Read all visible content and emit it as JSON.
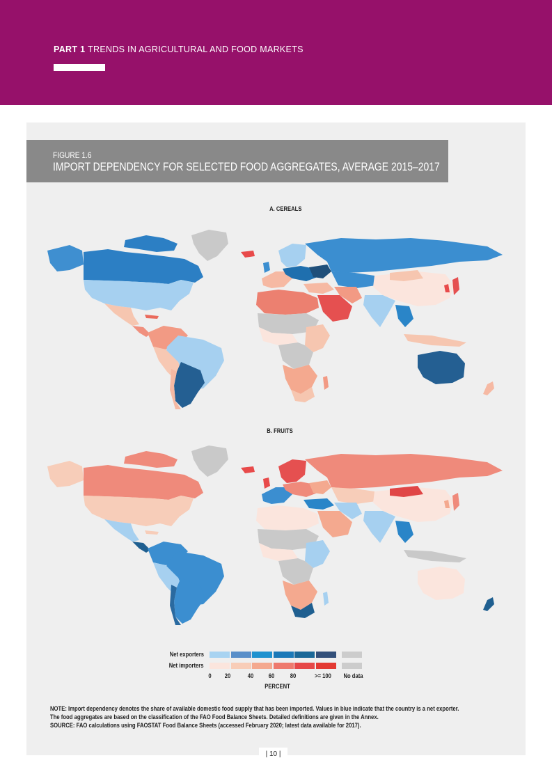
{
  "header": {
    "part_label": "PART 1",
    "part_title": "TRENDS IN AGRICULTURAL AND FOOD MARKETS",
    "accent_color": "#96116a"
  },
  "figure": {
    "label": "FIGURE 1.6",
    "title": "IMPORT DEPENDENCY FOR SELECTED FOOD AGGREGATES, AVERAGE 2015–2017"
  },
  "maps": {
    "cereals_title": "A. CEREALS",
    "fruits_title": "B. FRUITS"
  },
  "legend": {
    "exporters_label": "Net exporters",
    "importers_label": "Net importers",
    "exporter_colors": [
      "#a8d3f1",
      "#5a8fc9",
      "#1f92cf",
      "#1b79b8",
      "#1a6898",
      "#33507a"
    ],
    "importer_colors": [
      "#fbe5dd",
      "#f8cdb8",
      "#f4a98f",
      "#ee7a6e",
      "#e64848",
      "#e33a33"
    ],
    "nodata_color": "#cccccc",
    "ticks": [
      "0",
      "20",
      "40",
      "60",
      "80",
      ">= 100",
      "No data"
    ],
    "axis_label": "PERCENT"
  },
  "notes": {
    "line1": "NOTE: Import dependency denotes the share of available domestic food supply that has been imported. Values in blue indicate that the country is a net exporter.",
    "line2": "The food aggregates are based on the classification of the FAO Food Balance Sheets. Detailed definitions are given in the Annex.",
    "line3": "SOURCE: FAO calculations using FAOSTAT Food Balance Sheets (accessed February 2020; latest data available for 2017)."
  },
  "page": {
    "number": "| 10 |"
  }
}
